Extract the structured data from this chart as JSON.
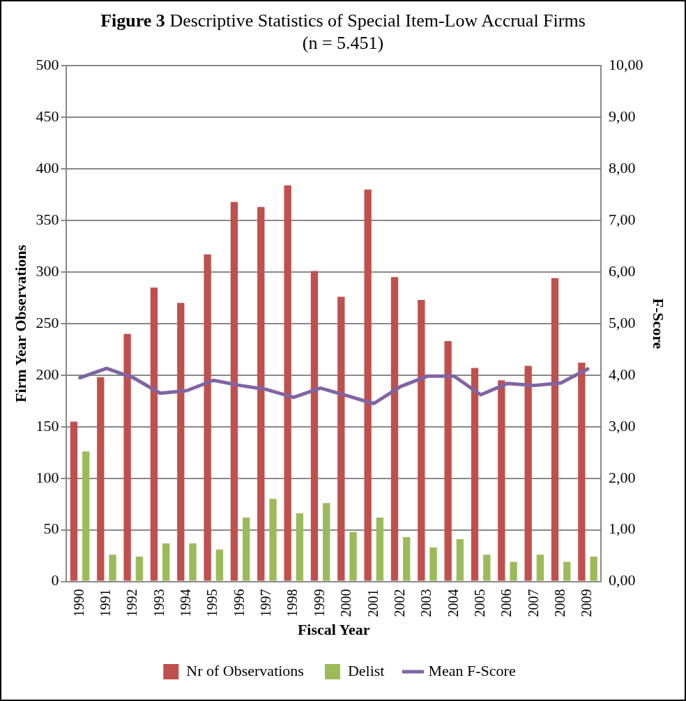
{
  "chart_data": {
    "type": "bar",
    "title": "Figure 3 Descriptive Statistics of Special Item-Low Accrual Firms",
    "subtitle": "(n = 5.451)",
    "xlabel": "Fiscal Year",
    "ylabel": "Firm Year Observations",
    "y2label": "F-Score",
    "categories": [
      "1990",
      "1991",
      "1992",
      "1993",
      "1994",
      "1995",
      "1996",
      "1997",
      "1998",
      "1999",
      "2000",
      "2001",
      "2002",
      "2003",
      "2004",
      "2005",
      "2006",
      "2007",
      "2008",
      "2009"
    ],
    "series": [
      {
        "name": "Nr of Observations",
        "color": "#c0504d",
        "values": [
          155,
          198,
          240,
          285,
          270,
          317,
          368,
          363,
          384,
          301,
          276,
          380,
          295,
          273,
          233,
          207,
          195,
          209,
          294,
          212
        ]
      },
      {
        "name": "Delist",
        "color": "#9bbb59",
        "values": [
          126,
          26,
          24,
          37,
          37,
          31,
          62,
          80,
          66,
          76,
          48,
          62,
          43,
          33,
          41,
          26,
          19,
          26,
          19,
          24
        ]
      },
      {
        "name": "Mean F-Score",
        "type": "line",
        "axis": "y2",
        "color": "#8064a2",
        "values": [
          3.95,
          4.13,
          3.95,
          3.65,
          3.7,
          3.9,
          3.8,
          3.72,
          3.57,
          3.75,
          3.6,
          3.45,
          3.78,
          3.98,
          3.98,
          3.62,
          3.84,
          3.8,
          3.85,
          4.12
        ]
      }
    ],
    "ylim": [
      0,
      500
    ],
    "yticks": [
      0,
      50,
      100,
      150,
      200,
      250,
      300,
      350,
      400,
      450,
      500
    ],
    "y2lim": [
      0,
      10
    ],
    "y2ticks": [
      {
        "value": 0,
        "label": "0,00"
      },
      {
        "value": 1,
        "label": "1,00"
      },
      {
        "value": 2,
        "label": "2,00"
      },
      {
        "value": 3,
        "label": "3,00"
      },
      {
        "value": 4,
        "label": "4,00"
      },
      {
        "value": 5,
        "label": "5,00"
      },
      {
        "value": 6,
        "label": "6,00"
      },
      {
        "value": 7,
        "label": "7,00"
      },
      {
        "value": 8,
        "label": "8,00"
      },
      {
        "value": 9,
        "label": "9,00"
      },
      {
        "value": 10,
        "label": "10,00"
      }
    ],
    "grid": "y",
    "legend": "bottom",
    "marker": "none",
    "line_style": "solid"
  }
}
